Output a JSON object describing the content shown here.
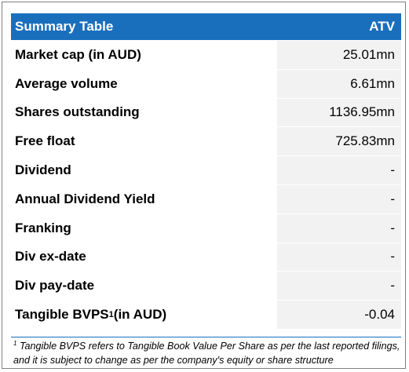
{
  "header": {
    "title": "Summary Table",
    "ticker": "ATV"
  },
  "rows": [
    {
      "label": "Market cap (in AUD)",
      "value": "25.01mn"
    },
    {
      "label": "Average volume",
      "value": "6.61mn"
    },
    {
      "label": "Shares outstanding",
      "value": "1136.95mn"
    },
    {
      "label": "Free float",
      "value": "725.83mn"
    },
    {
      "label": "Dividend",
      "value": "-"
    },
    {
      "label": "Annual Dividend Yield",
      "value": "-"
    },
    {
      "label": "Franking",
      "value": "-"
    },
    {
      "label": "Div ex-date",
      "value": "-"
    },
    {
      "label": "Div pay-date",
      "value": "-"
    },
    {
      "label": "Tangible BVPS",
      "label_sup": "1",
      "label_suffix": " (in AUD)",
      "value": "-0.04"
    }
  ],
  "footnote": {
    "marker": "1",
    "text": " Tangible BVPS refers to Tangible Book Value Per Share as per the last reported filings, and it is subject to change as per the company's equity or share structure"
  }
}
